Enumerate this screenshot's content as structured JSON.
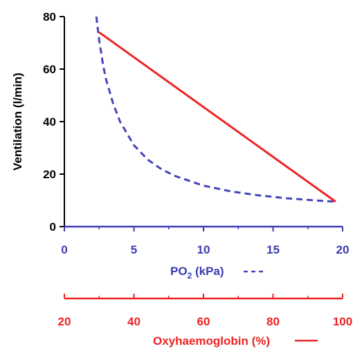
{
  "chart_data": {
    "type": "line",
    "title": "",
    "y_axis": {
      "label": "Ventilation (l/min)",
      "ticks": [
        0,
        20,
        40,
        60,
        80
      ],
      "range": [
        0,
        80
      ],
      "color": "#000000"
    },
    "x_axis_po2": {
      "label_main": "PO",
      "label_sub": "2",
      "label_unit": " (kPa)",
      "ticks": [
        0,
        5,
        10,
        15,
        20
      ],
      "range": [
        0,
        20
      ],
      "color": "#3a3ab0"
    },
    "x_axis_oxy": {
      "label": "Oxyhaemoglobin (%)",
      "ticks": [
        20,
        40,
        60,
        80,
        100
      ],
      "range": [
        20,
        100
      ],
      "color": "#ee2222"
    },
    "series": [
      {
        "axis": "po2",
        "style": "dashed",
        "color": "#4444bb",
        "x": [
          2.3,
          2.5,
          2.8,
          3.0,
          3.5,
          4.0,
          5.0,
          6.0,
          7.0,
          8.0,
          10.0,
          12.0,
          14.0,
          16.0,
          18.0,
          19.5
        ],
        "y": [
          80,
          71,
          61,
          56,
          47,
          40,
          31,
          25.5,
          21.8,
          19.2,
          15.6,
          13.4,
          11.9,
          10.8,
          10.0,
          9.5
        ]
      },
      {
        "axis": "oxy",
        "style": "solid",
        "color": "#ee2222",
        "x": [
          30,
          98
        ],
        "y": [
          74,
          9.5
        ]
      }
    ]
  }
}
